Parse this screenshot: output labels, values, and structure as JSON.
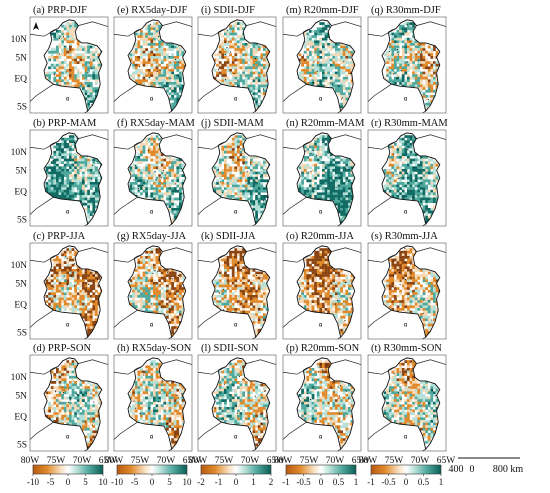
{
  "map_data": {
    "panels": [
      {
        "id": "a",
        "title": "(a) PRP-DJF"
      },
      {
        "id": "e",
        "title": "(e) RX5day-DJF"
      },
      {
        "id": "i",
        "title": "(i) SDII-DJF"
      },
      {
        "id": "m",
        "title": "(m) R20mm-DJF"
      },
      {
        "id": "q",
        "title": "(q) R30mm-DJF"
      },
      {
        "id": "b",
        "title": "(b) PRP-MAM"
      },
      {
        "id": "f",
        "title": "(f) RX5day-MAM"
      },
      {
        "id": "j",
        "title": "(j) SDII-MAM"
      },
      {
        "id": "n",
        "title": "(n) R20mm-MAM"
      },
      {
        "id": "r",
        "title": "(r) R30mm-MAM"
      },
      {
        "id": "c",
        "title": "(c) PRP-JJA"
      },
      {
        "id": "g",
        "title": "(g) RX5day-JJA"
      },
      {
        "id": "k",
        "title": "(k) SDII-JJA"
      },
      {
        "id": "o",
        "title": "(o) R20mm-JJA"
      },
      {
        "id": "s",
        "title": "(s) R30mm-JJA"
      },
      {
        "id": "d",
        "title": "(d) PRP-SON"
      },
      {
        "id": "h",
        "title": "(h) RX5day-SON"
      },
      {
        "id": "l",
        "title": "(l) SDII-SON"
      },
      {
        "id": "p",
        "title": "(p) R20mm-SON"
      },
      {
        "id": "t",
        "title": "(t) R30mm-SON"
      }
    ],
    "lat_labels": [
      "10N",
      "5N",
      "EQ",
      "5S"
    ],
    "lon_labels": [
      "80W",
      "75W",
      "70W",
      "65W"
    ],
    "colorbars": [
      {
        "ticks": [
          "-10",
          "-5",
          "0",
          "5",
          "10"
        ]
      },
      {
        "ticks": [
          "-10",
          "-5",
          "0",
          "5",
          "10"
        ]
      },
      {
        "ticks": [
          "-2",
          "-1",
          "0",
          "1",
          "2"
        ]
      },
      {
        "ticks": [
          "-1",
          "-0.5",
          "0",
          "0.5",
          "1"
        ]
      },
      {
        "ticks": [
          "-1",
          "-0.5",
          "0",
          "0.5",
          "1"
        ]
      }
    ],
    "colors": {
      "strong_negative": "#8b4513",
      "negative": "#e08a2c",
      "weak_negative": "#f6d9b4",
      "neutral": "#ffffff",
      "weak_positive": "#b5e0d8",
      "positive": "#4fa89d",
      "strong_positive": "#0f6b63"
    },
    "scale_bar": {
      "labels": [
        "400",
        "0",
        "800 km"
      ]
    },
    "north_arrow": "north-arrow-icon"
  }
}
